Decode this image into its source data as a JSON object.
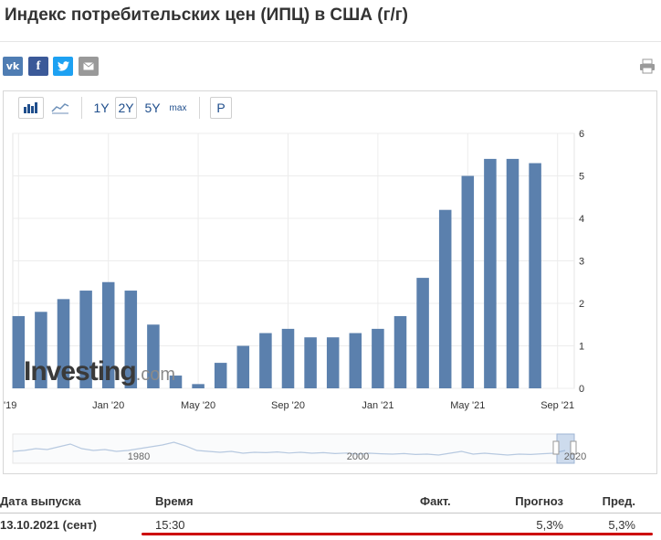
{
  "title": "Индекс потребительских цен (ИПЦ) в США (г/г)",
  "share": {
    "vk": "vk",
    "fb": "f",
    "tw": "twitter-icon",
    "em": "email-icon"
  },
  "toolbar": {
    "r1y": "1Y",
    "r2y": "2Y",
    "r5y": "5Y",
    "rmax": "max",
    "p": "P"
  },
  "watermark": {
    "brand": "Investing",
    "suffix": ".com"
  },
  "chart_data": {
    "type": "bar",
    "categories": [
      "Sep '19",
      "Oct '19",
      "Nov '19",
      "Dec '19",
      "Jan '20",
      "Feb '20",
      "Mar '20",
      "Apr '20",
      "May '20",
      "Jun '20",
      "Jul '20",
      "Aug '20",
      "Sep '20",
      "Oct '20",
      "Nov '20",
      "Dec '20",
      "Jan '21",
      "Feb '21",
      "Mar '21",
      "Apr '21",
      "May '21",
      "Jun '21",
      "Jul '21",
      "Aug '21",
      "Sep '21"
    ],
    "values": [
      1.7,
      1.8,
      2.1,
      2.3,
      2.5,
      2.3,
      1.5,
      0.3,
      0.1,
      0.6,
      1.0,
      1.3,
      1.4,
      1.2,
      1.2,
      1.3,
      1.4,
      1.7,
      2.6,
      4.2,
      5.0,
      5.4,
      5.4,
      5.3,
      null
    ],
    "ylim": [
      0,
      6
    ],
    "y_ticks": [
      "0",
      "1",
      "2",
      "3",
      "4",
      "5",
      "6"
    ],
    "x_tick_labels": [
      "'19",
      "Jan '20",
      "May '20",
      "Sep '20",
      "Jan '21",
      "May '21",
      "Sep '21"
    ],
    "navigator_labels": [
      "1980",
      "2000",
      "2020"
    ],
    "bar_color": "#5b80ad",
    "grid": true
  },
  "table": {
    "headers": {
      "date": "Дата выпуска",
      "time": "Время",
      "actual": "Факт.",
      "forecast": "Прогноз",
      "previous": "Пред."
    },
    "row": {
      "date": "13.10.2021 (сент)",
      "time": "15:30",
      "actual": "",
      "forecast": "5,3%",
      "previous": "5,3%"
    }
  }
}
